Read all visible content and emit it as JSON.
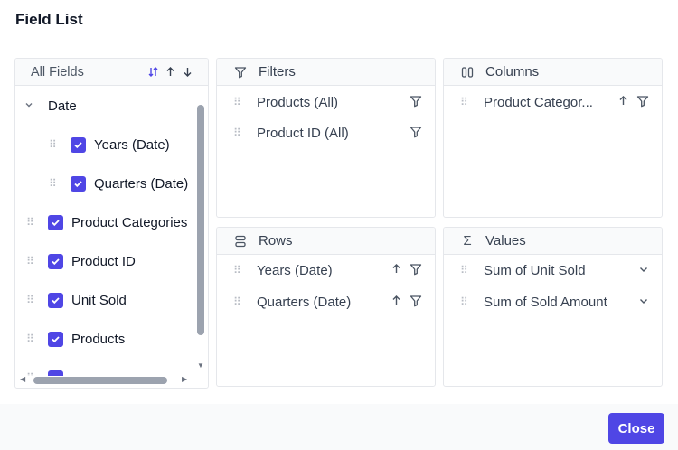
{
  "dialog": {
    "title": "Field List"
  },
  "all_fields": {
    "header": "All Fields",
    "sort_icons": [
      "sort-toggle-icon",
      "sort-ascending-icon",
      "sort-descending-icon"
    ],
    "tree": [
      {
        "label": "Date",
        "type": "group",
        "expanded": true
      },
      {
        "label": "Years (Date)",
        "type": "child",
        "checked": true
      },
      {
        "label": "Quarters (Date)",
        "type": "child",
        "checked": true
      },
      {
        "label": "Product Categories",
        "type": "field",
        "checked": true
      },
      {
        "label": "Product ID",
        "type": "field",
        "checked": true
      },
      {
        "label": "Unit Sold",
        "type": "field",
        "checked": true
      },
      {
        "label": "Products",
        "type": "field",
        "checked": true
      }
    ]
  },
  "filters": {
    "header": "Filters",
    "items": [
      {
        "label": "Products (All)"
      },
      {
        "label": "Product ID (All)"
      }
    ]
  },
  "columns": {
    "header": "Columns",
    "items": [
      {
        "label": "Product Categor..."
      }
    ]
  },
  "rows": {
    "header": "Rows",
    "items": [
      {
        "label": "Years (Date)"
      },
      {
        "label": "Quarters (Date)"
      }
    ]
  },
  "values": {
    "header": "Values",
    "items": [
      {
        "label": "Sum of Unit Sold"
      },
      {
        "label": "Sum of Sold Amount"
      }
    ]
  },
  "footer": {
    "close_label": "Close"
  },
  "colors": {
    "accent": "#4f46e5",
    "header_bg": "#f9fafb",
    "border": "#e5e7eb"
  }
}
